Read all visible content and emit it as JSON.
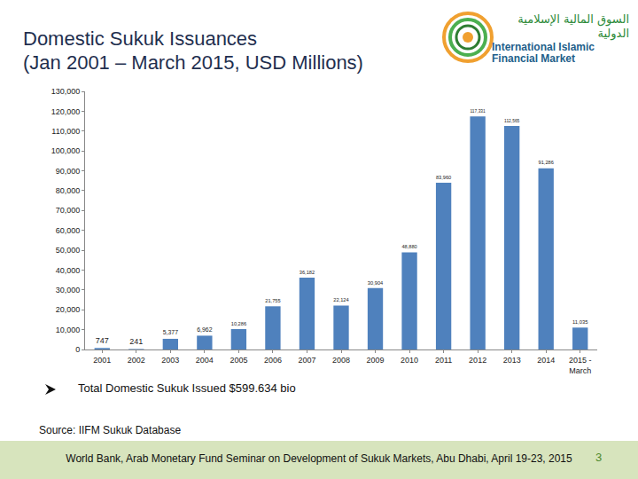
{
  "header": {
    "title": "Domestic Sukuk Issuances (Jan 2001 – March 2015, USD Millions)",
    "logo": {
      "arabic": "السوق المالية الإسلامية الدولية",
      "english": "International Islamic Financial Market"
    }
  },
  "chart_data": {
    "type": "bar",
    "categories": [
      "2001",
      "2002",
      "2003",
      "2004",
      "2005",
      "2006",
      "2007",
      "2008",
      "2009",
      "2010",
      "2011",
      "2012",
      "2013",
      "2014",
      "2015 - March"
    ],
    "values": [
      747,
      241,
      5377,
      6962,
      10286,
      21755,
      36182,
      22124,
      30904,
      48880,
      83960,
      117331,
      112565,
      91286,
      11035
    ],
    "value_labels": [
      "747",
      "241",
      "5,377",
      "6,962",
      "10,286",
      "21,755",
      "36,182",
      "22,124",
      "30,904",
      "48,880",
      "83,960",
      "117,331",
      "112,565",
      "91,286",
      "11,035"
    ],
    "data_labels": true,
    "color": "#4f81bd",
    "ylim": [
      0,
      130000
    ],
    "yticks": [
      0,
      {
        "value": 10000,
        "label": "10,000"
      },
      {
        "value": 20000,
        "label": "20,000"
      },
      {
        "value": 30000,
        "label": "30,000"
      },
      {
        "value": 40000,
        "label": "40,000"
      },
      {
        "value": 50000,
        "label": "50,000"
      },
      {
        "value": 60000,
        "label": "60,000"
      },
      {
        "value": 70000,
        "label": "70,000"
      },
      {
        "value": 80000,
        "label": "80,000"
      },
      {
        "value": 90000,
        "label": "90,000"
      },
      {
        "value": 100000,
        "label": "100,000"
      },
      {
        "value": 110000,
        "label": "110,000"
      },
      {
        "value": 120000,
        "label": "120,000"
      },
      {
        "value": 130000,
        "label": "130,000"
      }
    ],
    "grid": false
  },
  "note": "Total Domestic Sukuk Issued $599.634 bio",
  "source": "Source: IIFM Sukuk Database",
  "footer": {
    "text": "World Bank, Arab Monetary Fund Seminar on Development of Sukuk Markets, Abu Dhabi, April 19-23, 2015",
    "page_number": "3"
  }
}
